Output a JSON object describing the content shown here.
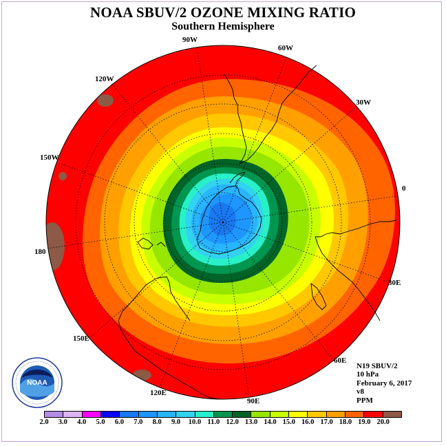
{
  "title": "NOAA SBUV/2 OZONE MIXING RATIO",
  "subtitle": "Southern Hemisphere",
  "longitude_labels": {
    "lon_90w": "90W",
    "lon_60w": "60W",
    "lon_30w": "30W",
    "lon_0": "0",
    "lon_30e": "30E",
    "lon_60e": "60E",
    "lon_90e": "90E",
    "lon_120e": "120E",
    "lon_150e": "150E",
    "lon_180": "180",
    "lon_150w": "150W",
    "lon_120w": "120W"
  },
  "info": {
    "instrument": "N19 SBUV/2",
    "level": "10 hPa",
    "date": "February 6, 2017",
    "version": "v8",
    "units": "PPM"
  },
  "colorbar": {
    "ticks": [
      "2.0",
      "3.0",
      "4.0",
      "5.0",
      "6.0",
      "7.0",
      "8.0",
      "9.0",
      "10.0",
      "11.0",
      "12.0",
      "13.0",
      "14.0",
      "15.0",
      "16.0",
      "17.0",
      "18.0",
      "19.0",
      "20.0"
    ],
    "colors": [
      "#b48ce6",
      "#dcb4f0",
      "#ff00ff",
      "#0000ff",
      "#1a78f0",
      "#1e96ff",
      "#28b4ff",
      "#32d2f0",
      "#28f0c8",
      "#009650",
      "#006428",
      "#96e600",
      "#c8ff00",
      "#ffff00",
      "#ffc800",
      "#ffa000",
      "#ff6400",
      "#ff0000",
      "#8c5a46"
    ]
  },
  "logo": {
    "text": "NOAA",
    "ring_text": "NATIONAL OCEANIC AND ATMOSPHERIC ADMINISTRATION · U.S. DEPARTMENT OF COMMERCE"
  },
  "map_colors": {
    "level_18_19": "#ff0000",
    "level_17_18": "#ff6400",
    "level_16_17": "#ffa000",
    "level_15_16": "#ffc800",
    "level_14_15": "#ffff00",
    "level_13_14": "#c8ff00",
    "level_12_13": "#96e600",
    "level_11_12": "#006428",
    "level_10_11": "#009650",
    "level_9_10": "#28f0c8",
    "level_8_9": "#32d2f0",
    "level_7_8": "#28b4ff",
    "level_6_7": "#1e96ff",
    "level_5_6": "#1a78f0",
    "level_19_20": "#8c5a46"
  }
}
